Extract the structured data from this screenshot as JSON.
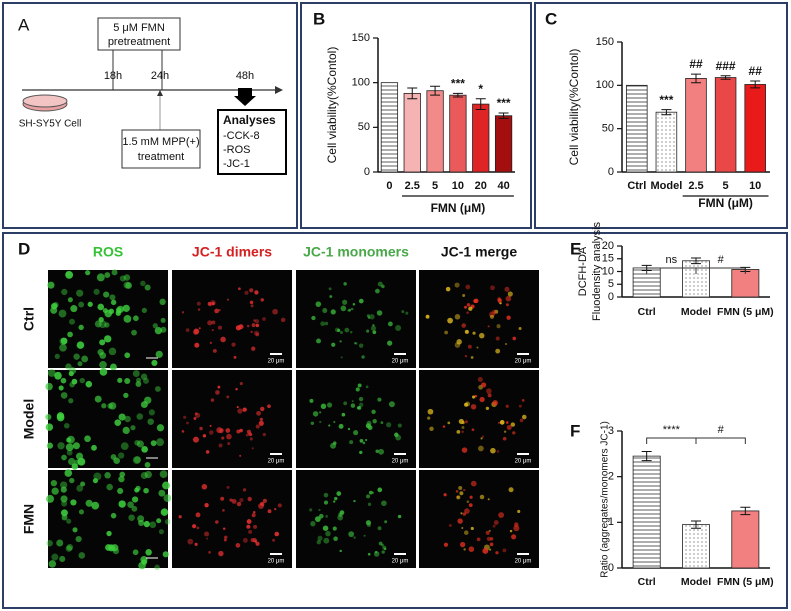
{
  "panel_a": {
    "letter": "A",
    "pretreatment_box": [
      "5 μM FMN",
      "pretreatment"
    ],
    "times": [
      "18h",
      "24h",
      "48h"
    ],
    "cell_label": "SH-SY5Y Cell",
    "treatment_box": [
      "1.5 mM MPP(+)",
      "treatment"
    ],
    "analyses_title": "Analyses",
    "analyses": [
      "-CCK-8",
      "-ROS",
      "-JC-1"
    ]
  },
  "panel_d": {
    "letter": "D",
    "columns": [
      "ROS",
      "JC-1 dimers",
      "JC-1 monomers",
      "JC-1 merge"
    ],
    "rows": [
      "Ctrl",
      "Model",
      "FMN"
    ],
    "scale_bar": "20 μm"
  },
  "chart_data": [
    {
      "type": "bar",
      "title": "B",
      "ylabel": "Cell viability(%Contol)",
      "xlabel": "FMN (μM)",
      "categories": [
        "0",
        "2.5",
        "5",
        "10",
        "20",
        "40"
      ],
      "values": [
        100,
        88,
        91,
        86,
        76,
        63
      ],
      "errors": [
        null,
        6,
        5,
        2,
        6,
        3
      ],
      "annotations": [
        null,
        null,
        null,
        "***",
        "*",
        "***"
      ],
      "colors": [
        "#ffffff",
        "#f6b3b3",
        "#f28a8a",
        "#ea5a5a",
        "#de2424",
        "#a30f0f"
      ],
      "patterns": [
        "horizontal-lines",
        "solid",
        "solid",
        "solid",
        "solid",
        "solid"
      ],
      "ylim": [
        0,
        150
      ],
      "yticks": [
        0,
        50,
        100,
        150
      ]
    },
    {
      "type": "bar",
      "title": "C",
      "ylabel": "Cell viability(%Contol)",
      "xlabel": "FMN (μM)",
      "categories": [
        "Ctrl",
        "Model",
        "2.5",
        "5",
        "10"
      ],
      "values": [
        100,
        69,
        108,
        109,
        101
      ],
      "errors": [
        null,
        3,
        5,
        2,
        4
      ],
      "annotations": [
        null,
        "***",
        "##",
        "###",
        "##"
      ],
      "colors": [
        "#ffffff",
        "#ffffff",
        "#f28080",
        "#ea4848",
        "#e81a1a"
      ],
      "patterns": [
        "horizontal-lines",
        "dots",
        "solid",
        "solid",
        "solid"
      ],
      "ylim": [
        0,
        150
      ],
      "yticks": [
        0,
        50,
        100,
        150
      ]
    },
    {
      "type": "bar",
      "title": "E",
      "ylabel": [
        "DCFH-DA",
        "Fluodensity analysis"
      ],
      "categories": [
        "Ctrl",
        "Model",
        "FMN (5 μM)"
      ],
      "values": [
        11.4,
        14.2,
        10.8
      ],
      "errors": [
        1.0,
        1.1,
        0.8
      ],
      "annotations": [
        "ns",
        "#"
      ],
      "colors": [
        "#ffffff",
        "#ffffff",
        "#f28080"
      ],
      "patterns": [
        "horizontal-lines",
        "dots",
        "solid"
      ],
      "ylim": [
        0,
        20
      ],
      "yticks": [
        0,
        5,
        10,
        15,
        20
      ]
    },
    {
      "type": "bar",
      "title": "F",
      "ylabel": "Ratio (aggregates/monomers JC-1)",
      "categories": [
        "Ctrl",
        "Model",
        "FMN (5 μM)"
      ],
      "values": [
        2.45,
        0.95,
        1.25
      ],
      "errors": [
        0.1,
        0.08,
        0.08
      ],
      "annotations": [
        "****",
        "#"
      ],
      "colors": [
        "#ffffff",
        "#ffffff",
        "#f28080"
      ],
      "patterns": [
        "horizontal-lines",
        "dots",
        "solid"
      ],
      "ylim": [
        0,
        3
      ],
      "yticks": [
        0,
        1,
        2,
        3
      ]
    }
  ]
}
